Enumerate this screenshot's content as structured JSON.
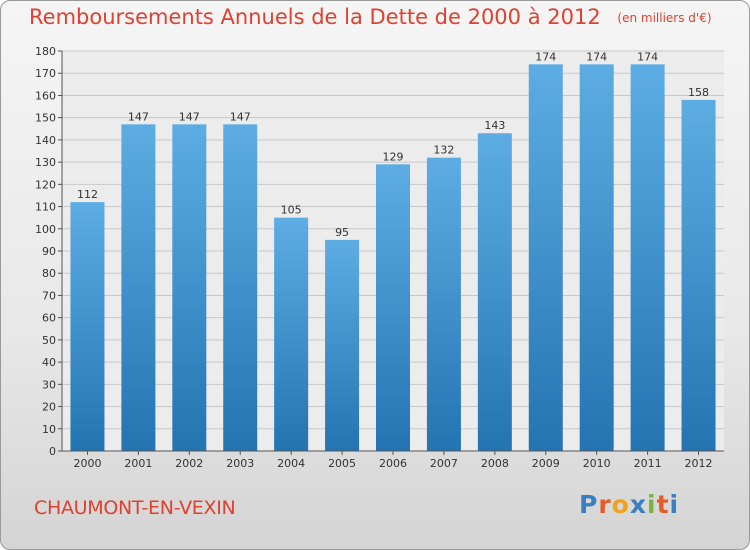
{
  "header": {
    "title": "Remboursements Annuels de la Dette de 2000 à 2012",
    "unit": "(en milliers d'€)"
  },
  "footer": {
    "commune": "CHAUMONT-EN-VEXIN",
    "logo_text": "Proxiti"
  },
  "colors": {
    "accent_text": "#e0402e",
    "bar_top": "#5dade4",
    "bar_bottom": "#2474b2",
    "logo_letters": [
      "#3a7fc4",
      "#e25d2a",
      "#f0a21e",
      "#3a7fc4",
      "#7cb342",
      "#e25d2a",
      "#3a7fc4"
    ]
  },
  "chart_data": {
    "type": "bar",
    "title": "Remboursements Annuels de la Dette de 2000 à 2012",
    "categories": [
      "2000",
      "2001",
      "2002",
      "2003",
      "2004",
      "2005",
      "2006",
      "2007",
      "2008",
      "2009",
      "2010",
      "2011",
      "2012"
    ],
    "values": [
      112,
      147,
      147,
      147,
      105,
      95,
      129,
      132,
      143,
      174,
      174,
      174,
      158
    ],
    "ylim": [
      0,
      180
    ],
    "yticks": [
      0,
      10,
      20,
      30,
      40,
      50,
      60,
      70,
      80,
      90,
      100,
      110,
      120,
      130,
      140,
      150,
      160,
      170,
      180
    ],
    "grid": true,
    "data_labels": true,
    "xlabel": "",
    "ylabel": ""
  }
}
